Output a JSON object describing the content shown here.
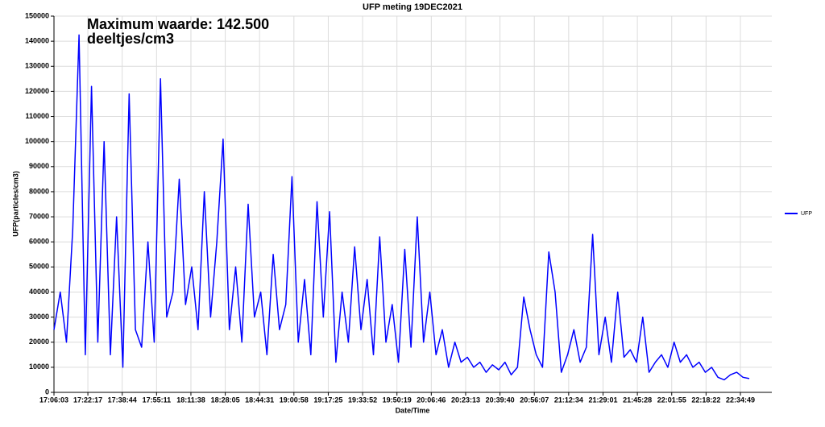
{
  "chart_data": {
    "type": "line",
    "title": "UFP meting 19DEC2021",
    "annotation": [
      "Maximum waarde: 142.500",
      "deeltjes/cm3"
    ],
    "xlabel": "Date/Time",
    "ylabel": "UFP(particles/cm3)",
    "x": [
      "17:06:03",
      "17:09:03",
      "17:12:03",
      "17:15:03",
      "17:18:03",
      "17:21:03",
      "17:24:03",
      "17:27:03",
      "17:30:03",
      "17:33:03",
      "17:36:03",
      "17:39:03",
      "17:42:03",
      "17:45:03",
      "17:48:03",
      "17:51:03",
      "17:54:03",
      "17:57:03",
      "18:00:03",
      "18:03:03",
      "18:06:03",
      "18:09:03",
      "18:12:03",
      "18:15:03",
      "18:18:03",
      "18:21:03",
      "18:24:03",
      "18:27:03",
      "18:30:03",
      "18:33:03",
      "18:36:03",
      "18:39:03",
      "18:42:03",
      "18:45:03",
      "18:48:03",
      "18:51:03",
      "18:54:03",
      "18:57:03",
      "19:00:03",
      "19:03:03",
      "19:06:03",
      "19:09:03",
      "19:12:03",
      "19:15:03",
      "19:18:03",
      "19:21:03",
      "19:24:03",
      "19:27:03",
      "19:30:03",
      "19:33:03",
      "19:36:03",
      "19:39:03",
      "19:42:03",
      "19:45:03",
      "19:48:03",
      "19:51:03",
      "19:54:03",
      "19:57:03",
      "20:00:03",
      "20:03:03",
      "20:06:03",
      "20:09:03",
      "20:12:03",
      "20:15:03",
      "20:18:03",
      "20:21:03",
      "20:24:03",
      "20:27:03",
      "20:30:03",
      "20:33:03",
      "20:36:03",
      "20:39:03",
      "20:42:03",
      "20:45:03",
      "20:48:03",
      "20:51:03",
      "20:54:03",
      "20:57:03",
      "21:00:03",
      "21:03:03",
      "21:06:03",
      "21:09:03",
      "21:12:03",
      "21:15:03",
      "21:18:03",
      "21:21:03",
      "21:24:03",
      "21:27:03",
      "21:30:03",
      "21:33:03",
      "21:36:03",
      "21:39:03",
      "21:42:03",
      "21:45:03",
      "21:48:03",
      "21:51:03",
      "21:54:03",
      "21:57:03",
      "22:00:03",
      "22:03:03",
      "22:06:03",
      "22:09:03",
      "22:12:03",
      "22:15:03",
      "22:18:03",
      "22:21:03",
      "22:24:03",
      "22:27:03",
      "22:30:03",
      "22:33:03",
      "22:36:03",
      "22:39:03"
    ],
    "series": [
      {
        "name": "UFP",
        "color": "#0000ff",
        "values": [
          25000,
          40000,
          20000,
          65000,
          142500,
          15000,
          122000,
          20000,
          100000,
          15000,
          70000,
          10000,
          119000,
          25000,
          18000,
          60000,
          20000,
          125000,
          30000,
          40000,
          85000,
          35000,
          50000,
          25000,
          80000,
          30000,
          60000,
          101000,
          25000,
          50000,
          20000,
          75000,
          30000,
          40000,
          15000,
          55000,
          25000,
          35000,
          86000,
          20000,
          45000,
          15000,
          76000,
          30000,
          72000,
          12000,
          40000,
          20000,
          58000,
          25000,
          45000,
          15000,
          62000,
          20000,
          35000,
          12000,
          57000,
          18000,
          70000,
          20000,
          40000,
          15000,
          25000,
          10000,
          20000,
          12000,
          14000,
          10000,
          12000,
          8000,
          11000,
          9000,
          12000,
          7000,
          10000,
          38000,
          25000,
          15000,
          10000,
          56000,
          40000,
          8000,
          15000,
          25000,
          12000,
          18000,
          63000,
          15000,
          30000,
          12000,
          40000,
          14000,
          17000,
          12000,
          30000,
          8000,
          12000,
          15000,
          10000,
          20000,
          12000,
          15000,
          10000,
          12000,
          8000,
          10000,
          6000,
          5000,
          7000,
          8000,
          6000,
          5500
        ]
      }
    ],
    "xlim": [
      "17:06:03",
      "22:49:52"
    ],
    "xticks": [
      "17:06:03",
      "17:22:17",
      "17:38:44",
      "17:55:11",
      "18:11:38",
      "18:28:05",
      "18:44:31",
      "19:00:58",
      "19:17:25",
      "19:33:52",
      "19:50:19",
      "20:06:46",
      "20:23:13",
      "20:39:40",
      "20:56:07",
      "21:12:34",
      "21:29:01",
      "21:45:28",
      "22:01:55",
      "22:18:22",
      "22:34:49"
    ],
    "ylim": [
      0,
      150000
    ],
    "yticks": [
      0,
      10000,
      20000,
      30000,
      40000,
      50000,
      60000,
      70000,
      80000,
      90000,
      100000,
      110000,
      120000,
      130000,
      140000,
      150000
    ],
    "grid": true
  }
}
